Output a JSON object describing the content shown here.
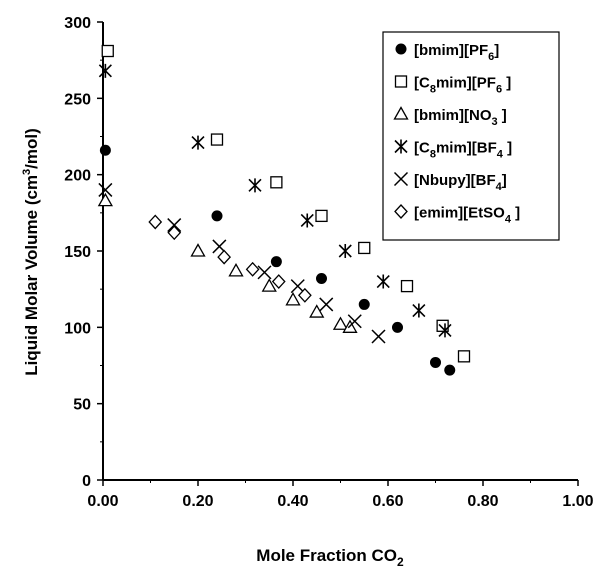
{
  "chart_data": {
    "type": "scatter",
    "xlabel": "Mole Fraction CO",
    "xlabel_sub": "2",
    "ylabel": "Liquid Molar Volume (cm",
    "ylabel_sup": "3",
    "ylabel_end": "/mol)",
    "xlim": [
      0,
      1
    ],
    "ylim": [
      0,
      300
    ],
    "x_ticks": [
      "0.00",
      "0.20",
      "0.40",
      "0.60",
      "0.80",
      "1.00"
    ],
    "y_ticks": [
      "0",
      "50",
      "100",
      "150",
      "200",
      "250",
      "300"
    ],
    "grid": false,
    "legend_position": "top-right",
    "series": [
      {
        "name": "[bmim][PF6]",
        "label_parts": [
          [
            "[bmim][PF",
            ""
          ],
          [
            "6",
            "sub"
          ],
          [
            "]",
            ""
          ]
        ],
        "marker": "filled-circle",
        "points": [
          [
            0.005,
            216
          ],
          [
            0.24,
            173
          ],
          [
            0.365,
            143
          ],
          [
            0.46,
            132
          ],
          [
            0.55,
            115
          ],
          [
            0.62,
            100
          ],
          [
            0.7,
            77
          ],
          [
            0.73,
            72
          ]
        ]
      },
      {
        "name": "[C8mim][PF6]",
        "label_parts": [
          [
            "[C",
            ""
          ],
          [
            "8",
            "sub"
          ],
          [
            "mim][PF",
            ""
          ],
          [
            "6",
            "sub"
          ],
          [
            " ]",
            ""
          ]
        ],
        "marker": "open-square",
        "points": [
          [
            0.01,
            281
          ],
          [
            0.24,
            223
          ],
          [
            0.365,
            195
          ],
          [
            0.46,
            173
          ],
          [
            0.55,
            152
          ],
          [
            0.64,
            127
          ],
          [
            0.715,
            101
          ],
          [
            0.76,
            81
          ]
        ]
      },
      {
        "name": "[bmim][NO3 ]",
        "label_parts": [
          [
            "[bmim][NO",
            ""
          ],
          [
            "3",
            "sub"
          ],
          [
            " ]",
            ""
          ]
        ],
        "marker": "open-triangle",
        "points": [
          [
            0.005,
            183
          ],
          [
            0.2,
            150
          ],
          [
            0.28,
            137
          ],
          [
            0.35,
            127
          ],
          [
            0.4,
            118
          ],
          [
            0.45,
            110
          ],
          [
            0.5,
            102
          ],
          [
            0.52,
            100
          ]
        ]
      },
      {
        "name": "[C8mim][BF4 ]",
        "label_parts": [
          [
            "[C",
            ""
          ],
          [
            "8",
            "sub"
          ],
          [
            "mim][BF",
            ""
          ],
          [
            "4",
            "sub"
          ],
          [
            " ]",
            ""
          ]
        ],
        "marker": "asterisk",
        "points": [
          [
            0.005,
            268
          ],
          [
            0.2,
            221
          ],
          [
            0.32,
            193
          ],
          [
            0.43,
            170
          ],
          [
            0.51,
            150
          ],
          [
            0.59,
            130
          ],
          [
            0.665,
            111
          ],
          [
            0.72,
            98
          ]
        ]
      },
      {
        "name": "[Nbupy][BF4]",
        "label_parts": [
          [
            "[Nbupy][BF",
            ""
          ],
          [
            "4",
            "sub"
          ],
          [
            "]",
            ""
          ]
        ],
        "marker": "x-cross",
        "points": [
          [
            0.005,
            190
          ],
          [
            0.15,
            167
          ],
          [
            0.245,
            153
          ],
          [
            0.34,
            136
          ],
          [
            0.41,
            127
          ],
          [
            0.47,
            115
          ],
          [
            0.53,
            104
          ],
          [
            0.58,
            94
          ]
        ]
      },
      {
        "name": "[emim][EtSO4 ]",
        "label_parts": [
          [
            "[emim][EtSO",
            ""
          ],
          [
            "4",
            "sub"
          ],
          [
            " ]",
            ""
          ]
        ],
        "marker": "open-diamond",
        "points": [
          [
            0.11,
            169
          ],
          [
            0.15,
            162
          ],
          [
            0.255,
            146
          ],
          [
            0.315,
            138
          ],
          [
            0.37,
            130
          ],
          [
            0.425,
            121
          ]
        ]
      }
    ]
  }
}
